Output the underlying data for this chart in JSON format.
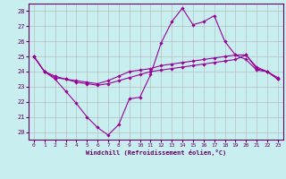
{
  "background_color": "#c8eef0",
  "line_color": "#990099",
  "grid_color": "#b0b0b0",
  "xlabel": "Windchill (Refroidissement éolien,°C)",
  "xlim": [
    -0.5,
    23.5
  ],
  "ylim": [
    19.5,
    28.5
  ],
  "yticks": [
    20,
    21,
    22,
    23,
    24,
    25,
    26,
    27,
    28
  ],
  "xticks": [
    0,
    1,
    2,
    3,
    4,
    5,
    6,
    7,
    8,
    9,
    10,
    11,
    12,
    13,
    14,
    15,
    16,
    17,
    18,
    19,
    20,
    21,
    22,
    23
  ],
  "line1": [
    25.0,
    24.0,
    23.5,
    22.7,
    21.9,
    21.0,
    20.3,
    19.8,
    20.5,
    22.2,
    22.3,
    23.8,
    25.9,
    27.3,
    28.2,
    27.1,
    27.3,
    27.7,
    26.0,
    25.1,
    24.8,
    24.1,
    24.0,
    23.5
  ],
  "line2": [
    25.0,
    24.0,
    23.6,
    23.5,
    23.3,
    23.2,
    23.1,
    23.2,
    23.4,
    23.6,
    23.8,
    24.0,
    24.1,
    24.2,
    24.3,
    24.4,
    24.5,
    24.6,
    24.7,
    24.8,
    25.1,
    24.2,
    24.0,
    23.5
  ],
  "line3": [
    25.0,
    24.0,
    23.7,
    23.5,
    23.4,
    23.3,
    23.2,
    23.4,
    23.7,
    24.0,
    24.1,
    24.2,
    24.4,
    24.5,
    24.6,
    24.7,
    24.8,
    24.9,
    25.0,
    25.1,
    25.1,
    24.3,
    24.0,
    23.6
  ]
}
